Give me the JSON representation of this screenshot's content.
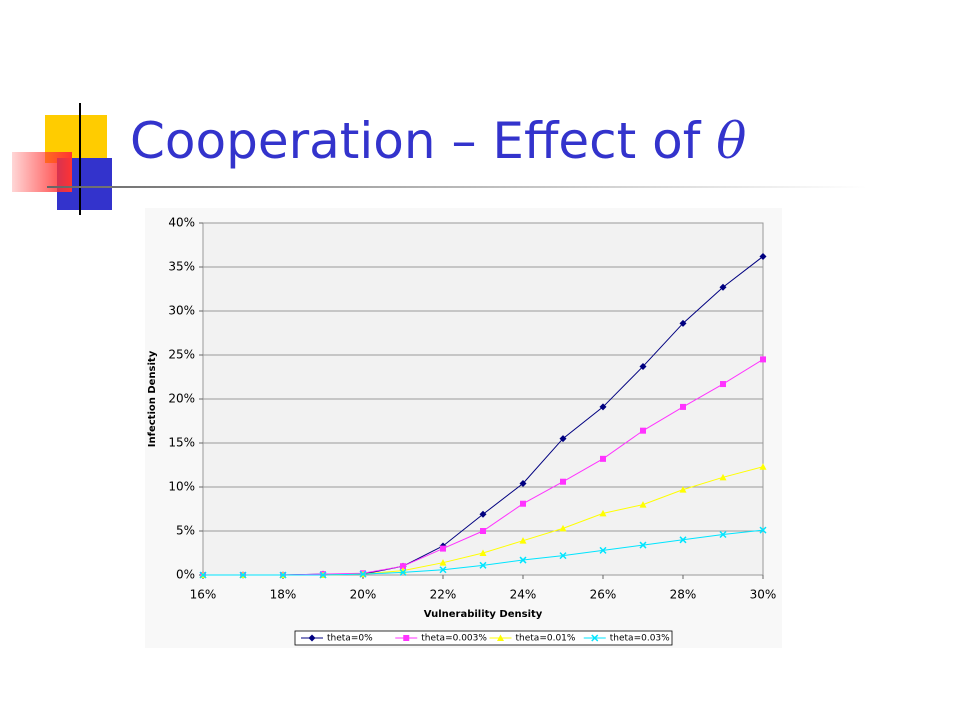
{
  "slide": {
    "title": "Cooperation – Effect of",
    "symbol": "θ"
  },
  "chart_data": {
    "type": "line",
    "x_label": "Vulnerability Density",
    "y_label": "Infection Density",
    "x": [
      16,
      17,
      18,
      19,
      20,
      21,
      22,
      23,
      24,
      25,
      26,
      27,
      28,
      29,
      30
    ],
    "xlim": [
      16,
      30
    ],
    "xticks": [
      {
        "value": 16,
        "label": "16%"
      },
      {
        "value": 18,
        "label": "18%"
      },
      {
        "value": 20,
        "label": "20%"
      },
      {
        "value": 22,
        "label": "22%"
      },
      {
        "value": 24,
        "label": "24%"
      },
      {
        "value": 26,
        "label": "26%"
      },
      {
        "value": 28,
        "label": "28%"
      },
      {
        "value": 30,
        "label": "30%"
      }
    ],
    "ylim": [
      0,
      40
    ],
    "yticks": [
      {
        "value": 0,
        "label": "0%"
      },
      {
        "value": 5,
        "label": "5%"
      },
      {
        "value": 10,
        "label": "10%"
      },
      {
        "value": 15,
        "label": "15%"
      },
      {
        "value": 20,
        "label": "20%"
      },
      {
        "value": 25,
        "label": "25%"
      },
      {
        "value": 30,
        "label": "30%"
      },
      {
        "value": 35,
        "label": "35%"
      },
      {
        "value": 40,
        "label": "40%"
      }
    ],
    "grid": true,
    "legend": "bottom",
    "series": [
      {
        "name": "theta=0%",
        "color": "#000080",
        "marker": "diamond",
        "values": [
          0,
          0,
          0,
          0.1,
          0.1,
          1.0,
          3.3,
          6.9,
          10.4,
          15.5,
          19.1,
          23.7,
          28.6,
          32.7,
          36.2
        ]
      },
      {
        "name": "theta=0.003%",
        "color": "#ff33ff",
        "marker": "square",
        "values": [
          0,
          0,
          0,
          0.1,
          0.2,
          1.0,
          3.0,
          5.0,
          8.1,
          10.6,
          13.2,
          16.4,
          19.1,
          21.7,
          24.5
        ]
      },
      {
        "name": "theta=0.01%",
        "color": "#ffff00",
        "marker": "triangle",
        "values": [
          0,
          0,
          0,
          0,
          0.1,
          0.5,
          1.4,
          2.5,
          3.9,
          5.3,
          7.0,
          8.0,
          9.7,
          11.1,
          12.3
        ]
      },
      {
        "name": "theta=0.03%",
        "color": "#00e5ff",
        "marker": "x",
        "values": [
          0,
          0,
          0,
          0,
          0.1,
          0.3,
          0.6,
          1.1,
          1.7,
          2.2,
          2.8,
          3.4,
          4.0,
          4.6,
          5.1
        ]
      }
    ]
  }
}
